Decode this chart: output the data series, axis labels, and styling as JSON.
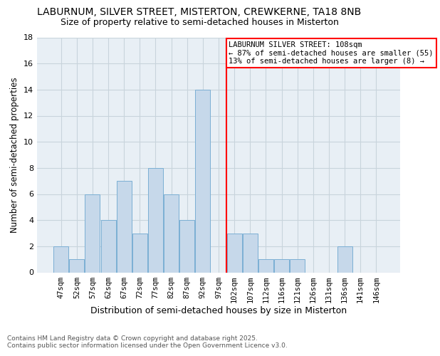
{
  "title": "LABURNUM, SILVER STREET, MISTERTON, CREWKERNE, TA18 8NB",
  "subtitle": "Size of property relative to semi-detached houses in Misterton",
  "xlabel": "Distribution of semi-detached houses by size in Misterton",
  "ylabel": "Number of semi-detached properties",
  "footnote": "Contains HM Land Registry data © Crown copyright and database right 2025.\nContains public sector information licensed under the Open Government Licence v3.0.",
  "bar_labels": [
    "47sqm",
    "52sqm",
    "57sqm",
    "62sqm",
    "67sqm",
    "72sqm",
    "77sqm",
    "82sqm",
    "87sqm",
    "92sqm",
    "97sqm",
    "102sqm",
    "107sqm",
    "112sqm",
    "116sqm",
    "121sqm",
    "126sqm",
    "131sqm",
    "136sqm",
    "141sqm",
    "146sqm"
  ],
  "bar_values": [
    2,
    1,
    6,
    4,
    7,
    3,
    8,
    6,
    4,
    14,
    0,
    3,
    3,
    1,
    1,
    1,
    0,
    0,
    2,
    0,
    0
  ],
  "bar_color": "#c6d8ea",
  "bar_edgecolor": "#7bafd4",
  "vline_x": 10.5,
  "vline_color": "red",
  "annotation_text": "LABURNUM SILVER STREET: 108sqm\n← 87% of semi-detached houses are smaller (55)\n13% of semi-detached houses are larger (8) →",
  "ylim": [
    0,
    18
  ],
  "yticks": [
    0,
    2,
    4,
    6,
    8,
    10,
    12,
    14,
    16,
    18
  ],
  "grid_color": "#c8d4dc",
  "background_color": "#e8eff5",
  "title_fontsize": 10,
  "subtitle_fontsize": 9
}
